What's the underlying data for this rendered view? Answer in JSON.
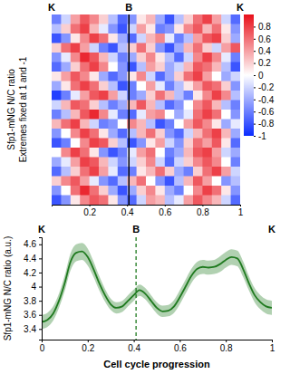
{
  "chart_data": [
    {
      "type": "heatmap",
      "ylabel": [
        "Sfp1-mNG N/C ratio",
        "Extremes fixed at 1 and -1"
      ],
      "annotations": [
        {
          "text": "K",
          "x": 0
        },
        {
          "text": "B",
          "x": 0.41
        },
        {
          "text": "K",
          "x": 1
        }
      ],
      "xlim": [
        0,
        1
      ],
      "xticks": [
        0.2,
        0.4,
        0.6,
        0.8,
        1
      ],
      "colors": [
        "#0a2bff",
        "#ffffff",
        "#e8101a"
      ],
      "colorbar": {
        "range": [
          -1,
          1
        ],
        "ticks": [
          -1,
          -0.8,
          -0.6,
          -0.4,
          -0.2,
          0,
          0.2,
          0.4,
          0.6,
          0.8
        ]
      },
      "cells": [
        [
          -0.6,
          -0.2,
          0.4,
          0.7,
          0.5,
          0.2,
          -0.3,
          -0.7,
          -0.5,
          0.1,
          0.3,
          -0.4,
          -0.8,
          -0.3,
          0.2,
          0.6,
          0.8,
          0.4,
          -0.2,
          -0.7
        ],
        [
          -0.3,
          0.2,
          0.6,
          0.8,
          0.3,
          -0.1,
          -0.5,
          -0.8,
          -0.2,
          0.4,
          0.1,
          -0.6,
          -0.5,
          0.1,
          0.5,
          0.7,
          0.3,
          0.6,
          0.1,
          -0.5
        ],
        [
          -0.8,
          -0.5,
          0.1,
          0.5,
          0.8,
          0.6,
          0.1,
          -0.4,
          -0.7,
          -0.2,
          0.3,
          0.5,
          -0.1,
          -0.6,
          -0.3,
          0.4,
          0.7,
          0.8,
          0.2,
          -0.4
        ],
        [
          0.2,
          0.6,
          0.8,
          0.4,
          -0.2,
          -0.6,
          -0.8,
          -0.3,
          0.2,
          0.6,
          0.2,
          -0.5,
          -0.8,
          -0.4,
          0.3,
          0.6,
          0.2,
          -0.2,
          0.4,
          0.7
        ],
        [
          -0.5,
          -0.1,
          0.5,
          0.9,
          0.7,
          0.3,
          -0.2,
          -0.6,
          -0.4,
          0.2,
          0.5,
          0.1,
          -0.3,
          -0.7,
          -0.2,
          0.5,
          0.8,
          0.5,
          -0.1,
          -0.6
        ],
        [
          -0.7,
          -0.4,
          0.2,
          0.6,
          0.8,
          0.5,
          0,
          -0.5,
          -0.8,
          -0.3,
          0.4,
          0.2,
          -0.4,
          -0.2,
          0.3,
          0.7,
          0.6,
          0.3,
          -0.3,
          -0.8
        ],
        [
          0.1,
          0.4,
          0.7,
          0.5,
          0.1,
          -0.4,
          -0.7,
          -0.5,
          0.1,
          0.5,
          -0.2,
          -0.7,
          -0.4,
          0.2,
          0.6,
          0.8,
          0.4,
          0,
          -0.4,
          -0.2
        ],
        [
          -0.4,
          0.1,
          0.6,
          0.8,
          0.6,
          0.2,
          -0.3,
          -0.8,
          -0.6,
          0,
          0.4,
          -0.1,
          -0.6,
          -0.3,
          0.1,
          0.4,
          0.7,
          0.6,
          0.2,
          -0.5
        ],
        [
          -0.9,
          -0.6,
          -0.1,
          0.4,
          0.7,
          0.8,
          0.4,
          -0.2,
          -0.6,
          -0.4,
          0.2,
          0.6,
          0.3,
          -0.3,
          -0.6,
          0.1,
          0.5,
          0.8,
          0.5,
          -0.3
        ],
        [
          -0.2,
          0.3,
          0.7,
          0.6,
          0.2,
          -0.3,
          -0.6,
          -0.4,
          0.3,
          0.7,
          0.3,
          -0.3,
          -0.7,
          -0.5,
          0,
          0.5,
          0.7,
          0.3,
          -0.3,
          -0.6
        ],
        [
          -0.6,
          -0.3,
          0.3,
          0.7,
          0.9,
          0.5,
          -0.1,
          -0.6,
          -0.7,
          -0.1,
          0.4,
          0.5,
          0,
          -0.4,
          -0.1,
          0.6,
          0.8,
          0.6,
          0,
          -0.5
        ],
        [
          0.3,
          0.6,
          0.8,
          0.3,
          -0.2,
          -0.6,
          -0.5,
          0,
          0.5,
          0.3,
          -0.3,
          -0.8,
          -0.6,
          0,
          0.4,
          0.7,
          0.5,
          0.1,
          -0.4,
          -0.1
        ],
        [
          -0.5,
          0,
          0.5,
          0.8,
          0.6,
          0.1,
          -0.4,
          -0.7,
          -0.3,
          0.3,
          0.6,
          0.2,
          -0.5,
          -0.7,
          -0.2,
          0.3,
          0.6,
          0.8,
          0.3,
          -0.4
        ],
        [
          -0.8,
          -0.6,
          0,
          0.5,
          0.8,
          0.7,
          0.2,
          -0.3,
          -0.8,
          -0.5,
          0.1,
          0.4,
          -0.2,
          -0.5,
          0.2,
          0.6,
          0.4,
          0.7,
          0.1,
          -0.7
        ],
        [
          0,
          0.5,
          0.8,
          0.6,
          0.1,
          -0.5,
          -0.8,
          -0.6,
          -0.1,
          0.4,
          0.6,
          0,
          -0.6,
          -0.4,
          0.3,
          0.7,
          0.8,
          0.4,
          -0.2,
          -0.4
        ],
        [
          -0.4,
          -0.1,
          0.4,
          0.8,
          0.7,
          0.3,
          -0.2,
          -0.5,
          -0.2,
          0.2,
          0.5,
          -0.2,
          -0.7,
          -0.2,
          0.2,
          0.5,
          0.7,
          0.5,
          0,
          -0.6
        ],
        [
          -0.7,
          -0.3,
          0.2,
          0.6,
          0.8,
          0.4,
          -0.1,
          -0.7,
          -0.6,
          0.1,
          0.3,
          0.6,
          0.2,
          -0.4,
          -0.6,
          0.2,
          0.6,
          0.8,
          0.4,
          -0.2
        ],
        [
          0.2,
          0.5,
          0.7,
          0.4,
          -0.1,
          -0.5,
          -0.7,
          -0.3,
          0.3,
          0.6,
          0,
          -0.5,
          -0.8,
          -0.3,
          0.3,
          0.7,
          0.4,
          0,
          -0.5,
          -0.3
        ],
        [
          -0.5,
          0,
          0.6,
          0.9,
          0.6,
          0.2,
          -0.4,
          -0.8,
          -0.4,
          0.2,
          0.5,
          0.1,
          -0.4,
          -0.6,
          0,
          0.5,
          0.8,
          0.6,
          0.1,
          -0.5
        ],
        [
          -0.8,
          -0.5,
          0.1,
          0.5,
          0.7,
          0.6,
          0.1,
          -0.5,
          -0.7,
          -0.2,
          0.4,
          0.3,
          -0.3,
          -0.1,
          0.4,
          0.7,
          0.5,
          0.3,
          -0.2,
          -0.7
        ]
      ]
    },
    {
      "type": "line",
      "xlabel": "Cell cycle progression",
      "ylabel": "Sfp1-mNG N/C ratio (a.u.)",
      "annotations": [
        {
          "text": "K",
          "x": 0
        },
        {
          "text": "B",
          "x": 0.41
        },
        {
          "text": "K",
          "x": 1
        }
      ],
      "xlim": [
        0,
        1
      ],
      "xticks": [
        0,
        0.2,
        0.4,
        0.6,
        0.8,
        1
      ],
      "ylim": [
        3.25,
        4.7
      ],
      "yticks": [
        3.4,
        3.6,
        3.8,
        4,
        4.2,
        4.4,
        4.6
      ],
      "x": [
        0,
        0.025,
        0.05,
        0.075,
        0.1,
        0.125,
        0.15,
        0.175,
        0.2,
        0.225,
        0.25,
        0.275,
        0.3,
        0.325,
        0.35,
        0.375,
        0.4,
        0.425,
        0.45,
        0.475,
        0.5,
        0.525,
        0.55,
        0.575,
        0.6,
        0.625,
        0.65,
        0.675,
        0.7,
        0.725,
        0.75,
        0.775,
        0.8,
        0.825,
        0.85,
        0.875,
        0.9,
        0.925,
        0.95,
        0.975,
        1
      ],
      "series": [
        {
          "color": "#1f7a1f",
          "values": [
            3.5,
            3.53,
            3.62,
            3.8,
            4.05,
            4.35,
            4.48,
            4.5,
            4.42,
            4.25,
            4.05,
            3.88,
            3.75,
            3.7,
            3.72,
            3.8,
            3.88,
            3.95,
            3.9,
            3.8,
            3.7,
            3.65,
            3.66,
            3.72,
            3.85,
            4.0,
            4.15,
            4.25,
            4.28,
            4.27,
            4.28,
            4.32,
            4.38,
            4.42,
            4.4,
            4.25,
            4.05,
            3.88,
            3.78,
            3.72,
            3.7
          ],
          "lower": [
            3.4,
            3.43,
            3.52,
            3.7,
            3.94,
            4.23,
            4.36,
            4.38,
            4.3,
            4.14,
            3.95,
            3.79,
            3.67,
            3.62,
            3.64,
            3.72,
            3.8,
            3.87,
            3.82,
            3.72,
            3.62,
            3.57,
            3.58,
            3.63,
            3.75,
            3.9,
            4.05,
            4.15,
            4.18,
            4.17,
            4.18,
            4.21,
            4.27,
            4.31,
            4.29,
            4.14,
            3.95,
            3.78,
            3.68,
            3.62,
            3.6
          ],
          "upper": [
            3.6,
            3.63,
            3.72,
            3.9,
            4.16,
            4.47,
            4.6,
            4.62,
            4.54,
            4.36,
            4.15,
            3.97,
            3.83,
            3.78,
            3.8,
            3.88,
            3.96,
            4.03,
            3.98,
            3.88,
            3.78,
            3.73,
            3.74,
            3.81,
            3.95,
            4.1,
            4.25,
            4.35,
            4.38,
            4.37,
            4.38,
            4.43,
            4.49,
            4.53,
            4.51,
            4.36,
            4.15,
            3.98,
            3.88,
            3.82,
            3.8
          ]
        }
      ]
    }
  ]
}
